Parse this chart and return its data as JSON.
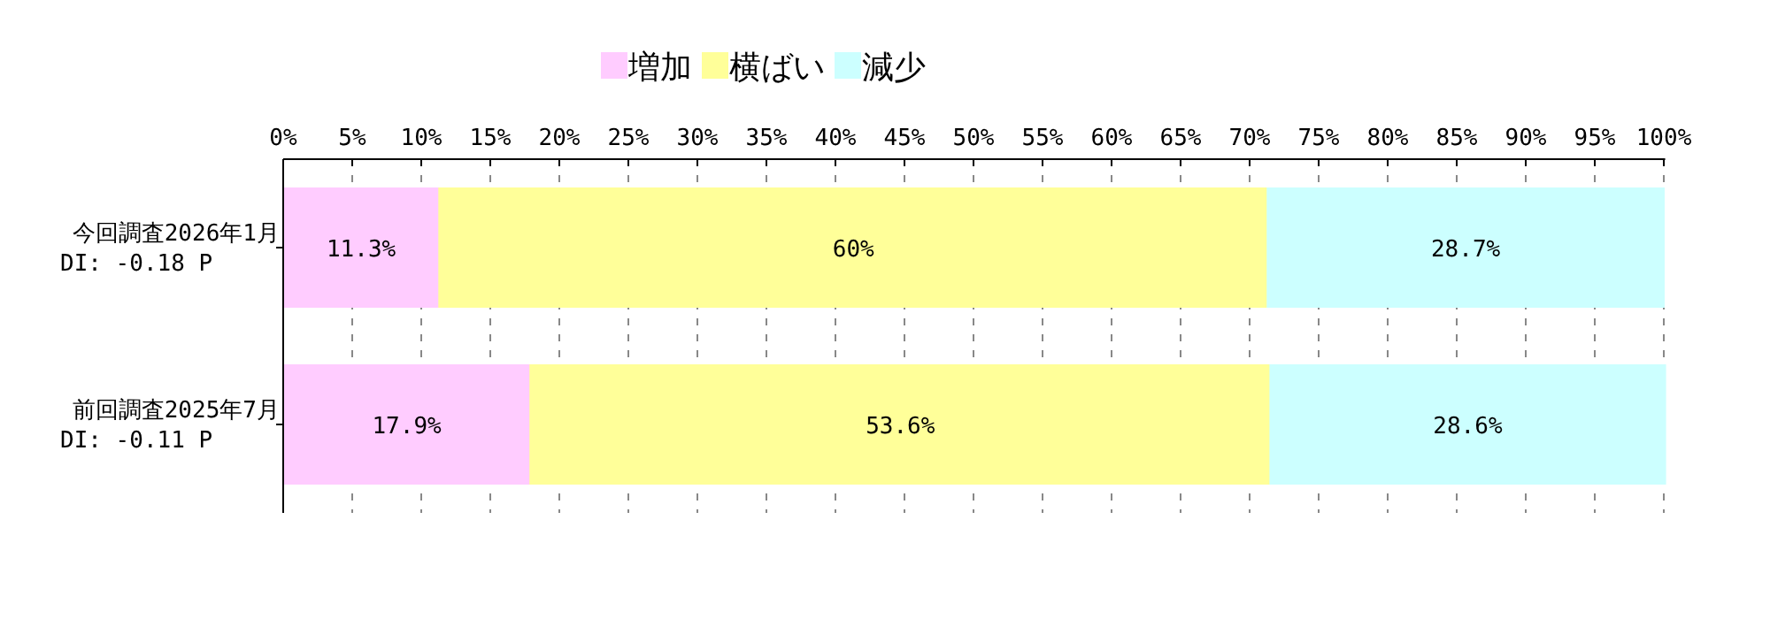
{
  "chart_data": {
    "type": "bar",
    "orientation": "horizontal",
    "stacked": true,
    "categories": [
      "今回調査2026年1月\nDI: -0.18 P",
      "前回調査2025年7月\nDI: -0.11 P"
    ],
    "series": [
      {
        "name": "増加",
        "color": "#ffccff",
        "values": [
          11.3,
          17.9
        ],
        "value_labels": [
          "11.3%",
          "17.9%"
        ]
      },
      {
        "name": "横ばい",
        "color": "#ffff99",
        "values": [
          60,
          53.6
        ],
        "value_labels": [
          "60%",
          "53.6%"
        ]
      },
      {
        "name": "減少",
        "color": "#ccffff",
        "values": [
          28.7,
          28.6
        ],
        "value_labels": [
          "28.7%",
          "28.6%"
        ]
      }
    ],
    "xlim": [
      0,
      100.1
    ],
    "xticks": [
      {
        "value": 0,
        "label": "0%"
      },
      {
        "value": 5,
        "label": "5%"
      },
      {
        "value": 10,
        "label": "10%"
      },
      {
        "value": 15,
        "label": "15%"
      },
      {
        "value": 20,
        "label": "20%"
      },
      {
        "value": 25,
        "label": "25%"
      },
      {
        "value": 30,
        "label": "30%"
      },
      {
        "value": 35,
        "label": "35%"
      },
      {
        "value": 40,
        "label": "40%"
      },
      {
        "value": 45,
        "label": "45%"
      },
      {
        "value": 50,
        "label": "50%"
      },
      {
        "value": 55,
        "label": "55%"
      },
      {
        "value": 60,
        "label": "60%"
      },
      {
        "value": 65,
        "label": "65%"
      },
      {
        "value": 70,
        "label": "70%"
      },
      {
        "value": 75,
        "label": "75%"
      },
      {
        "value": 80,
        "label": "80%"
      },
      {
        "value": 85,
        "label": "85%"
      },
      {
        "value": 90,
        "label": "90%"
      },
      {
        "value": 95,
        "label": "95%"
      },
      {
        "value": 100,
        "label": "100%"
      }
    ],
    "grid": "x",
    "legend": "top"
  }
}
